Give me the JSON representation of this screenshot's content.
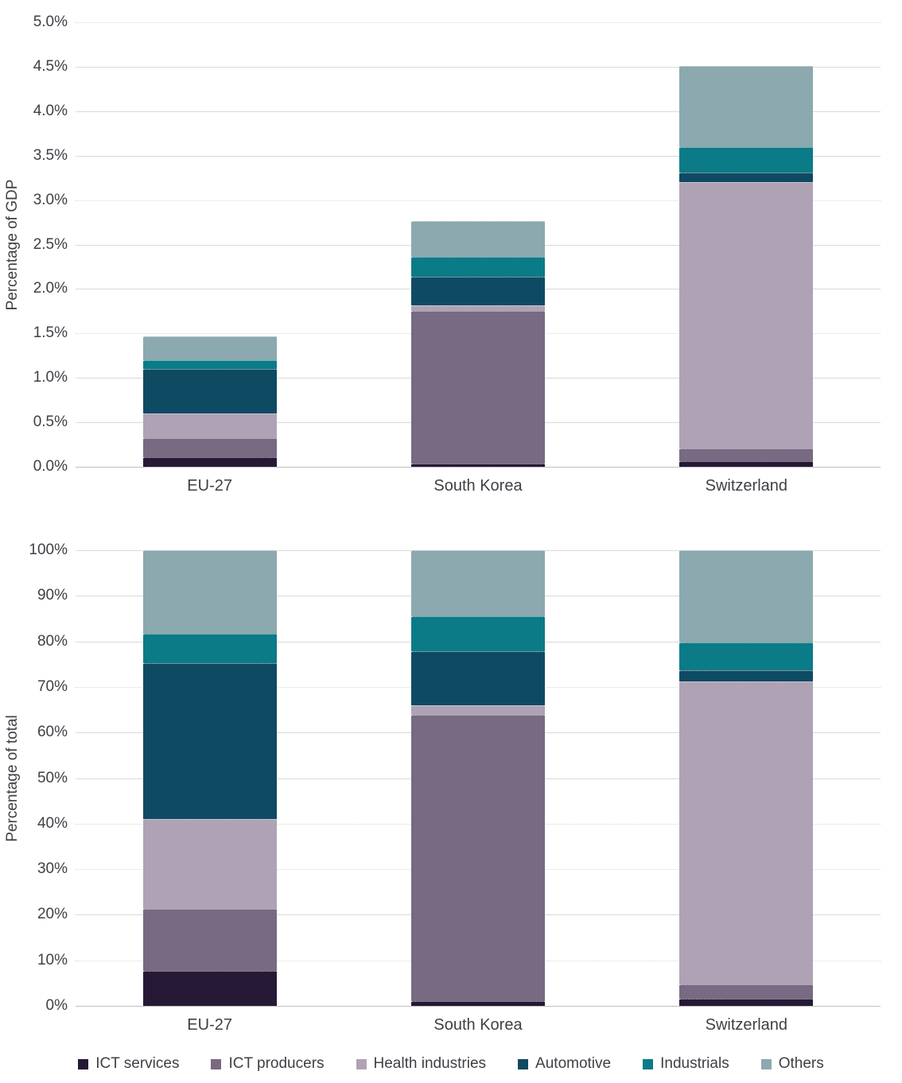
{
  "chart_data": [
    {
      "type": "bar",
      "stacked": true,
      "y_axis_title": "Percentage of GDP",
      "ylim": [
        0,
        5
      ],
      "tick_step": 0.5,
      "tick_labels": [
        "5.0%",
        "4.5%",
        "4.0%",
        "3.5%",
        "3.0%",
        "2.5%",
        "2.0%",
        "1.5%",
        "1.0%",
        "0.5%",
        "0.0%"
      ],
      "categories": [
        "EU-27",
        "South Korea",
        "Switzerland"
      ],
      "series": [
        {
          "name": "ICT services",
          "color": "#261936",
          "values": [
            0.11,
            0.04,
            0.06
          ]
        },
        {
          "name": "ICT producers",
          "color": "#786A82",
          "values": [
            0.21,
            1.71,
            0.15
          ]
        },
        {
          "name": "Health industries",
          "color": "#AFA2B5",
          "values": [
            0.28,
            0.07,
            2.99
          ]
        },
        {
          "name": "Automotive",
          "color": "#0F4A63",
          "values": [
            0.5,
            0.32,
            0.11
          ]
        },
        {
          "name": "Industrials",
          "color": "#0A7B87",
          "values": [
            0.1,
            0.22,
            0.29
          ]
        },
        {
          "name": "Others",
          "color": "#8BA9AF",
          "values": [
            0.27,
            0.4,
            0.91
          ]
        }
      ],
      "totals": [
        1.47,
        2.76,
        4.51
      ],
      "grid": true,
      "dotted_gridlines": [
        5.0,
        3.0,
        1.5
      ],
      "legend_position": "bottom"
    },
    {
      "type": "bar",
      "stacked": true,
      "y_axis_title": "Percentage of total",
      "ylim": [
        0,
        100
      ],
      "tick_step": 10,
      "tick_labels": [
        "100%",
        "90%",
        "80%",
        "70%",
        "60%",
        "50%",
        "40%",
        "30%",
        "20%",
        "10%",
        "0%"
      ],
      "categories": [
        "EU-27",
        "South Korea",
        "Switzerland"
      ],
      "series": [
        {
          "name": "ICT services",
          "color": "#261936",
          "values": [
            7.7,
            1.0,
            1.5
          ]
        },
        {
          "name": "ICT producers",
          "color": "#786A82",
          "values": [
            13.6,
            62.8,
            3.3
          ]
        },
        {
          "name": "Health industries",
          "color": "#AFA2B5",
          "values": [
            19.7,
            2.1,
            66.4
          ]
        },
        {
          "name": "Automotive",
          "color": "#0F4A63",
          "values": [
            34.3,
            12.0,
            2.4
          ]
        },
        {
          "name": "Industrials",
          "color": "#0A7B87",
          "values": [
            6.4,
            7.7,
            6.2
          ]
        },
        {
          "name": "Others",
          "color": "#8BA9AF",
          "values": [
            18.3,
            14.4,
            20.2
          ]
        }
      ],
      "totals": [
        100,
        100,
        100
      ],
      "grid": true,
      "dotted_gridlines": [
        70,
        40,
        30,
        10
      ],
      "legend_position": "bottom"
    }
  ],
  "legend": {
    "items": [
      {
        "label": "ICT services",
        "color": "#261936"
      },
      {
        "label": "ICT producers",
        "color": "#786A82"
      },
      {
        "label": "Health industries",
        "color": "#AFA2B5"
      },
      {
        "label": "Automotive",
        "color": "#0F4A63"
      },
      {
        "label": "Industrials",
        "color": "#0A7B87"
      },
      {
        "label": "Others",
        "color": "#8BA9AF"
      }
    ]
  },
  "colors": {
    "gridline": "#D9D9D9",
    "axis_line": "#BFBFBF",
    "text": "#3F3F46",
    "background": "#FFFFFF"
  }
}
